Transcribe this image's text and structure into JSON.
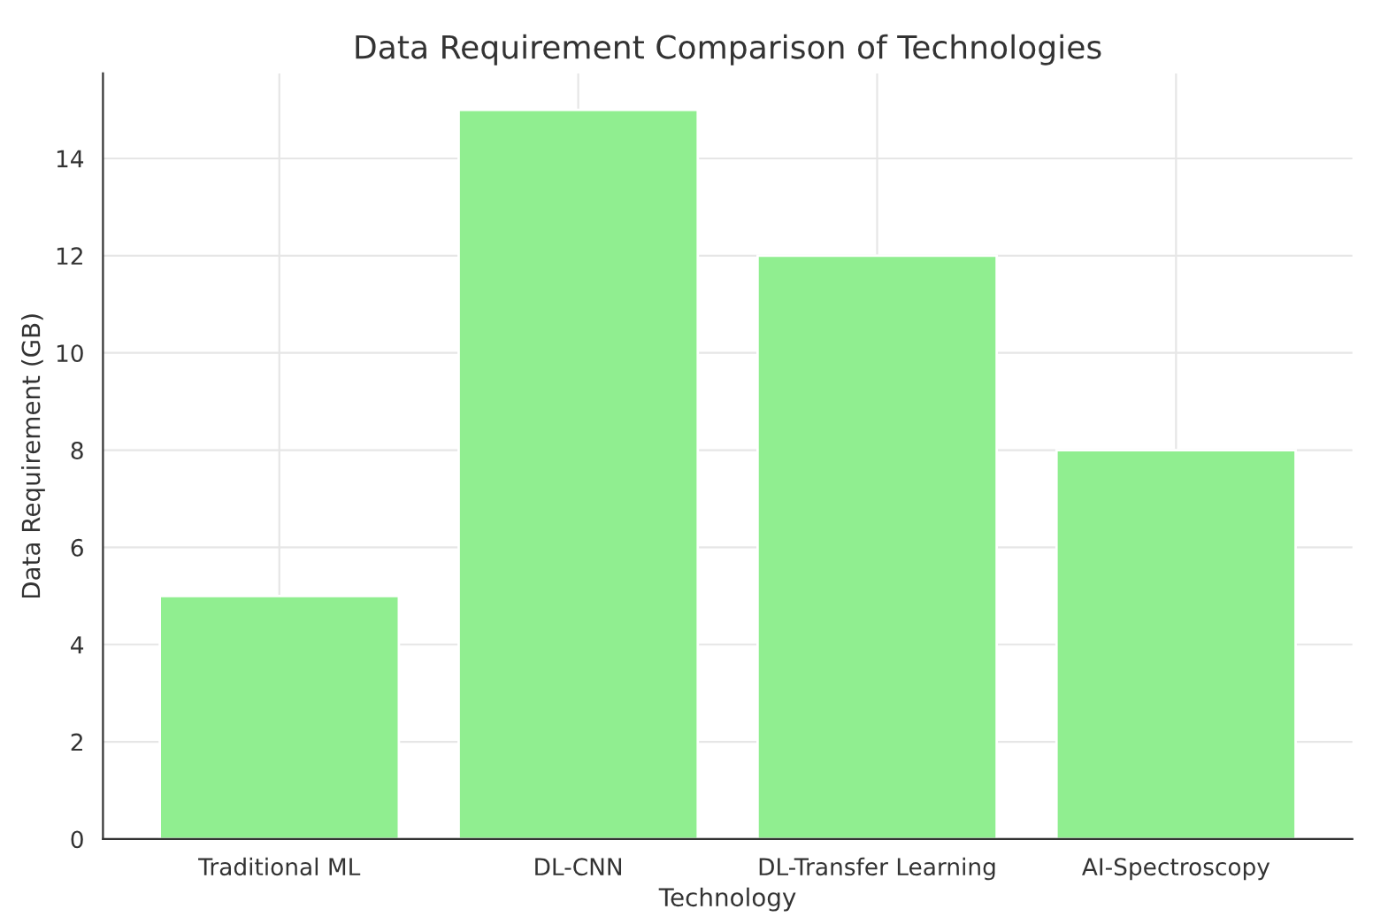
{
  "chart_data": {
    "type": "bar",
    "title": "Data Requirement Comparison of Technologies",
    "xlabel": "Technology",
    "ylabel": "Data Requirement (GB)",
    "categories": [
      "Traditional ML",
      "DL-CNN",
      "DL-Transfer Learning",
      "AI-Spectroscopy"
    ],
    "values": [
      5,
      15,
      12,
      8
    ],
    "color": "#90ee90",
    "ylim": [
      0,
      15.75
    ],
    "yticks": [
      0,
      2,
      4,
      6,
      8,
      10,
      12,
      14
    ],
    "grid": true
  }
}
